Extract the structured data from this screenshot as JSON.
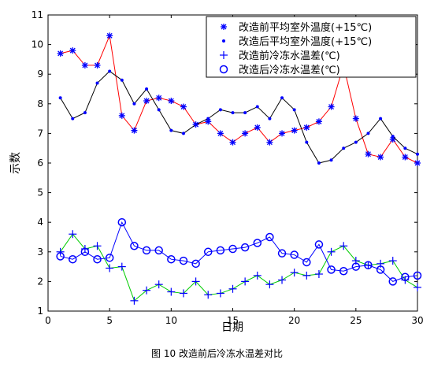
{
  "chart_data": {
    "type": "line",
    "xlabel": "日期",
    "ylabel": "示数",
    "xlim": [
      0,
      30
    ],
    "ylim": [
      1,
      11
    ],
    "xticks": [
      0,
      5,
      10,
      15,
      20,
      25,
      30
    ],
    "yticks": [
      1,
      2,
      3,
      4,
      5,
      6,
      7,
      8,
      9,
      10,
      11
    ],
    "grid": false,
    "legend_position": "top-right",
    "x": [
      1,
      2,
      3,
      4,
      5,
      6,
      7,
      8,
      9,
      10,
      11,
      12,
      13,
      14,
      15,
      16,
      17,
      18,
      19,
      20,
      21,
      22,
      23,
      24,
      25,
      26,
      27,
      28,
      29,
      30
    ],
    "series": [
      {
        "name": "改造前平均室外温度(+15℃)",
        "color": "#ff0000",
        "marker": "asterisk",
        "marker_color": "#0000ff",
        "values": [
          9.7,
          9.8,
          9.3,
          9.3,
          10.3,
          7.6,
          7.1,
          8.1,
          8.2,
          8.1,
          7.9,
          7.3,
          7.4,
          7.0,
          6.7,
          7.0,
          7.2,
          6.7,
          7.0,
          7.1,
          7.2,
          7.4,
          7.9,
          9.3,
          7.5,
          6.3,
          6.2,
          6.8,
          6.2,
          6.0
        ]
      },
      {
        "name": "改造后平均室外温度(+15℃)",
        "color": "#000000",
        "marker": "dot",
        "marker_color": "#0000ff",
        "values": [
          8.2,
          7.5,
          7.7,
          8.7,
          9.1,
          8.8,
          8.0,
          8.5,
          7.8,
          7.1,
          7.0,
          7.3,
          7.5,
          7.8,
          7.7,
          7.7,
          7.9,
          7.5,
          8.2,
          7.8,
          6.7,
          6.0,
          6.1,
          6.5,
          6.7,
          7.0,
          7.5,
          6.9,
          6.5,
          6.3
        ]
      },
      {
        "name": "改造前冷冻水温差(℃)",
        "color": "#00cc00",
        "marker": "plus",
        "marker_color": "#0000ff",
        "values": [
          3.0,
          3.6,
          3.1,
          3.2,
          2.45,
          2.5,
          1.35,
          1.7,
          1.9,
          1.65,
          1.6,
          2.0,
          1.55,
          1.6,
          1.75,
          2.0,
          2.2,
          1.9,
          2.05,
          2.3,
          2.2,
          2.25,
          3.0,
          3.2,
          2.7,
          2.55,
          2.6,
          2.7,
          2.05,
          1.8
        ]
      },
      {
        "name": "改造后冷冻水温差(℃)",
        "color": "#0000ff",
        "marker": "circle",
        "marker_color": "#0000ff",
        "values": [
          2.85,
          2.75,
          3.0,
          2.75,
          2.8,
          4.0,
          3.2,
          3.05,
          3.05,
          2.75,
          2.7,
          2.6,
          3.0,
          3.05,
          3.1,
          3.15,
          3.3,
          3.5,
          2.95,
          2.9,
          2.65,
          3.25,
          2.4,
          2.35,
          2.5,
          2.55,
          2.4,
          2.0,
          2.15,
          2.2
        ]
      }
    ]
  },
  "caption": "图 10 改造前后冷冻水温差对比"
}
